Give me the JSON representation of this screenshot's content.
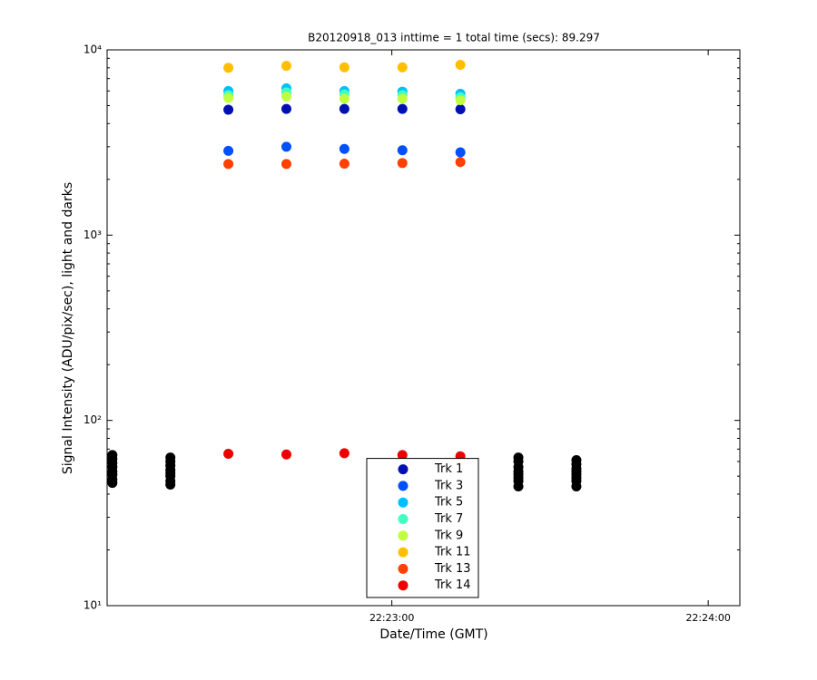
{
  "chart_data": {
    "type": "scatter",
    "title": "B20120918_013 inttime = 1 total time (secs): 89.297",
    "x_label": "Date/Time (GMT)",
    "y_label": "Signal Intensity (ADU/pix/sec), light and darks",
    "y_scale": "log",
    "minor_ticks": true,
    "legend": "south",
    "xlim": [
      "22:22:06",
      "22:24:06"
    ],
    "xticks": [
      "22:23:00",
      "22:24:00"
    ],
    "ylim": [
      10,
      10000
    ],
    "yticks": [
      {
        "value": 10,
        "label": "10¹"
      },
      {
        "value": 100,
        "label": "10²"
      },
      {
        "value": 1000,
        "label": "10³"
      },
      {
        "value": 10000,
        "label": "10⁴"
      }
    ],
    "x": [
      "22:22:29",
      "22:22:40",
      "22:22:51",
      "22:23:02",
      "22:23:13"
    ],
    "series": [
      {
        "name": "Trk 1",
        "color": "#0010b0",
        "values": [
          4750,
          4800,
          4800,
          4800,
          4780
        ]
      },
      {
        "name": "Trk 3",
        "color": "#0050ff",
        "values": [
          2850,
          3000,
          2920,
          2870,
          2800
        ]
      },
      {
        "name": "Trk 5",
        "color": "#00bfff",
        "values": [
          6000,
          6200,
          6000,
          5950,
          5800
        ]
      },
      {
        "name": "Trk 7",
        "color": "#40ffc0",
        "values": [
          5700,
          5900,
          5750,
          5700,
          5550
        ]
      },
      {
        "name": "Trk 9",
        "color": "#bfff40",
        "values": [
          5500,
          5600,
          5450,
          5450,
          5350
        ]
      },
      {
        "name": "Trk 11",
        "color": "#ffbf00",
        "values": [
          8000,
          8200,
          8050,
          8050,
          8300
        ]
      },
      {
        "name": "Trk 13",
        "color": "#ff4000",
        "values": [
          2420,
          2420,
          2430,
          2450,
          2480
        ]
      },
      {
        "name": "Trk 14",
        "color": "#ee0000",
        "values": [
          66,
          65.5,
          66.5,
          65,
          64
        ]
      },
      {
        "color": "#000000",
        "x": [
          "22:22:07",
          "22:22:07",
          "22:22:07",
          "22:22:07",
          "22:22:07",
          "22:22:07",
          "22:22:07",
          "22:22:07",
          "22:22:18",
          "22:22:18",
          "22:22:18",
          "22:22:18",
          "22:22:18",
          "22:22:18",
          "22:22:18",
          "22:22:18",
          "22:23:24",
          "22:23:24",
          "22:23:24",
          "22:23:24",
          "22:23:24",
          "22:23:24",
          "22:23:24",
          "22:23:24",
          "22:23:35",
          "22:23:35",
          "22:23:35",
          "22:23:35",
          "22:23:35",
          "22:23:35",
          "22:23:35",
          "22:23:35"
        ],
        "values": [
          65,
          62,
          59,
          56,
          53,
          51,
          48,
          46,
          63,
          60,
          57,
          54,
          52,
          50,
          47,
          45,
          63,
          60,
          56,
          53,
          51,
          49,
          47,
          44,
          61,
          58,
          55,
          53,
          51,
          49,
          47,
          44
        ]
      }
    ]
  }
}
